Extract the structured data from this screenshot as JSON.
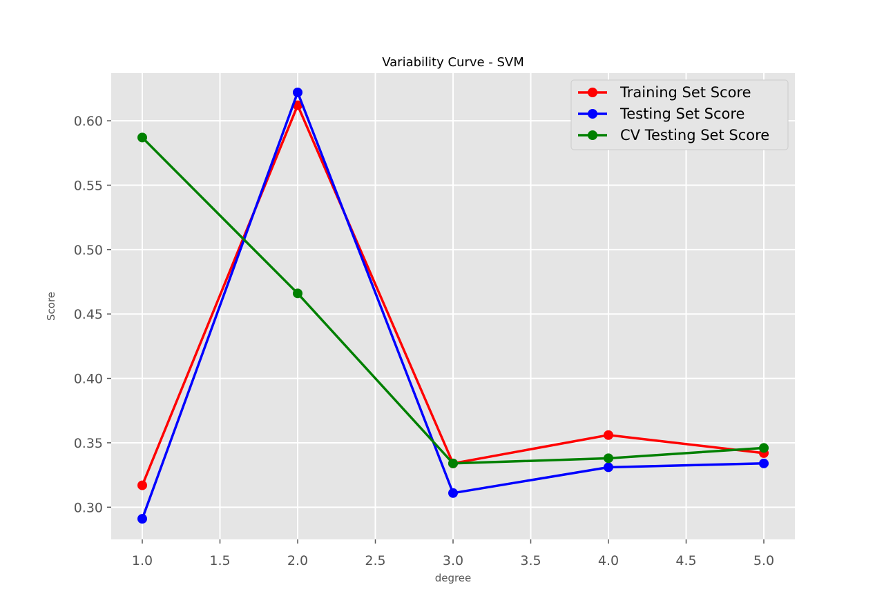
{
  "chart_data": {
    "type": "line",
    "title": "Variability Curve - SVM",
    "xlabel": "degree",
    "ylabel": "Score",
    "x": [
      1.0,
      2.0,
      3.0,
      4.0,
      5.0
    ],
    "xlim": [
      0.8,
      5.2
    ],
    "ylim": [
      0.275,
      0.637
    ],
    "xticks": [
      1.0,
      1.5,
      2.0,
      2.5,
      3.0,
      3.5,
      4.0,
      4.5,
      5.0
    ],
    "xtick_labels": [
      "1.0",
      "1.5",
      "2.0",
      "2.5",
      "3.0",
      "3.5",
      "4.0",
      "4.5",
      "5.0"
    ],
    "yticks": [
      0.3,
      0.35,
      0.4,
      0.45,
      0.5,
      0.55,
      0.6
    ],
    "ytick_labels": [
      "0.30",
      "0.35",
      "0.40",
      "0.45",
      "0.50",
      "0.55",
      "0.60"
    ],
    "grid": true,
    "legend_position": "top-right",
    "background_color": "#e5e5e5",
    "grid_color": "#ffffff",
    "series": [
      {
        "name": "Training Set Score",
        "color": "#ff0000",
        "values": [
          0.317,
          0.612,
          0.334,
          0.356,
          0.342
        ]
      },
      {
        "name": "Testing Set Score",
        "color": "#0000ff",
        "values": [
          0.291,
          0.622,
          0.311,
          0.331,
          0.334
        ]
      },
      {
        "name": "CV Testing Set Score",
        "color": "#008000",
        "values": [
          0.587,
          0.466,
          0.334,
          0.338,
          0.346
        ]
      }
    ]
  }
}
